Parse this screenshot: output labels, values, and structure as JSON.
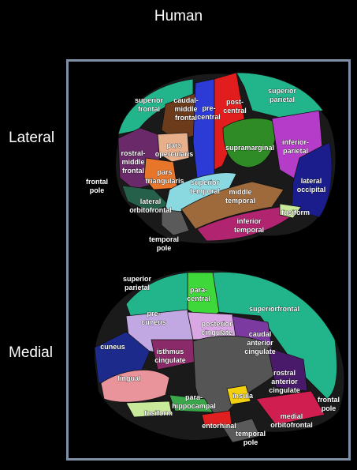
{
  "title": "Human",
  "views": {
    "lateral": "Lateral",
    "medial": "Medial"
  },
  "colors": {
    "panel_border": "#7f90a6",
    "superior_frontal": "#22b58c",
    "caudal_middle_frontal": "#6b3b1c",
    "precentral": "#2d3bd6",
    "postcentral": "#e11d1d",
    "superior_parietal": "#22b58c",
    "supramarginal": "#2e8b25",
    "inferior_parietal": "#b43cc8",
    "lateral_occipital": "#1b1d8c",
    "pars_opercularis": "#e8b08a",
    "pars_triangularis": "#e8762a",
    "rostral_middle_frontal": "#6a2a6a",
    "lateral_orbitofrontal": "#24604a",
    "superior_temporal": "#8ad8e0",
    "middle_temporal": "#9e6a3c",
    "inferior_temporal": "#b02470",
    "temporal_pole": "#5a5a5a",
    "fusiform": "#c8e89a",
    "paracentral": "#3fd83a",
    "precuneus": "#c2a8e2",
    "posterior_cingulate": "#d9a8e4",
    "caudal_anterior_cingulate": "#7a3aa0",
    "isthmus_cingulate": "#8a2a68",
    "cuneus": "#1c2a8c",
    "lingual": "#e8949a",
    "parahippocampal": "#3aa84a",
    "entorhinal": "#e02020",
    "insula": "#f0d010",
    "rostral_anterior_cingulate": "#4a1a6a",
    "medial_orbitofrontal": "#d01e50",
    "medial_wall": "#555555"
  },
  "lateral_regions": [
    {
      "key": "superior_frontal",
      "lines": [
        "superior",
        "frontal"
      ]
    },
    {
      "key": "caudal_middle_frontal",
      "lines": [
        "caudal-",
        "middle",
        "frontal"
      ]
    },
    {
      "key": "precentral",
      "lines": [
        "pre-",
        "central"
      ]
    },
    {
      "key": "postcentral",
      "lines": [
        "post-",
        "central"
      ]
    },
    {
      "key": "superior_parietal",
      "lines": [
        "superior",
        "parietal"
      ]
    },
    {
      "key": "supramarginal",
      "lines": [
        "supramarginal"
      ]
    },
    {
      "key": "inferior_parietal",
      "lines": [
        "inferior-",
        "parietal"
      ]
    },
    {
      "key": "pars_opercularis",
      "lines": [
        "pars",
        "opercularis"
      ]
    },
    {
      "key": "rostral_middle_frontal",
      "lines": [
        "rostral-",
        "middle",
        "frontal"
      ]
    },
    {
      "key": "pars_triangularis",
      "lines": [
        "pars",
        "triangularis"
      ]
    },
    {
      "key": "frontal_pole",
      "lines": [
        "frontal",
        "pole"
      ]
    },
    {
      "key": "superior_temporal",
      "lines": [
        "superior",
        "temporal"
      ]
    },
    {
      "key": "middle_temporal",
      "lines": [
        "middle",
        "temporal"
      ]
    },
    {
      "key": "lateral_occipital",
      "lines": [
        "lateral",
        "occipital"
      ]
    },
    {
      "key": "lateral_orbitofrontal",
      "lines": [
        "lateral",
        "orbitofrontal"
      ]
    },
    {
      "key": "inferior_temporal",
      "lines": [
        "inferior",
        "temporal"
      ]
    },
    {
      "key": "fusiform",
      "lines": [
        "fusiform"
      ]
    },
    {
      "key": "temporal_pole",
      "lines": [
        "temporal",
        "pole"
      ]
    }
  ],
  "medial_regions": [
    {
      "key": "superior_parietal",
      "lines": [
        "superior",
        "parietal"
      ]
    },
    {
      "key": "paracentral",
      "lines": [
        "para-",
        "central"
      ]
    },
    {
      "key": "precuneus",
      "lines": [
        "pre-",
        "cuneus"
      ]
    },
    {
      "key": "superior_frontal",
      "lines": [
        "superiorfrontal"
      ]
    },
    {
      "key": "posterior_cingulate",
      "lines": [
        "posterior",
        "cingulate"
      ]
    },
    {
      "key": "caudal_anterior_cingulate",
      "lines": [
        "caudal",
        "anterior",
        "cingulate"
      ]
    },
    {
      "key": "cuneus",
      "lines": [
        "cuneus"
      ]
    },
    {
      "key": "isthmus_cingulate",
      "lines": [
        "isthmus",
        "cingulate"
      ]
    },
    {
      "key": "lingual",
      "lines": [
        "lingual"
      ]
    },
    {
      "key": "rostral_anterior_cingulate",
      "lines": [
        "rostral",
        "anterior",
        "cingulate"
      ]
    },
    {
      "key": "parahippocampal",
      "lines": [
        "para-",
        "hippocampal"
      ]
    },
    {
      "key": "insula",
      "lines": [
        "insula"
      ]
    },
    {
      "key": "frontal_pole",
      "lines": [
        "frontal",
        "pole"
      ]
    },
    {
      "key": "fusiform",
      "lines": [
        "fusiform"
      ]
    },
    {
      "key": "medial_orbitofrontal",
      "lines": [
        "medial",
        "orbitofrontal"
      ]
    },
    {
      "key": "entorhinal",
      "lines": [
        "entorhinal"
      ]
    },
    {
      "key": "temporal_pole",
      "lines": [
        "temporal",
        "pole"
      ]
    }
  ]
}
